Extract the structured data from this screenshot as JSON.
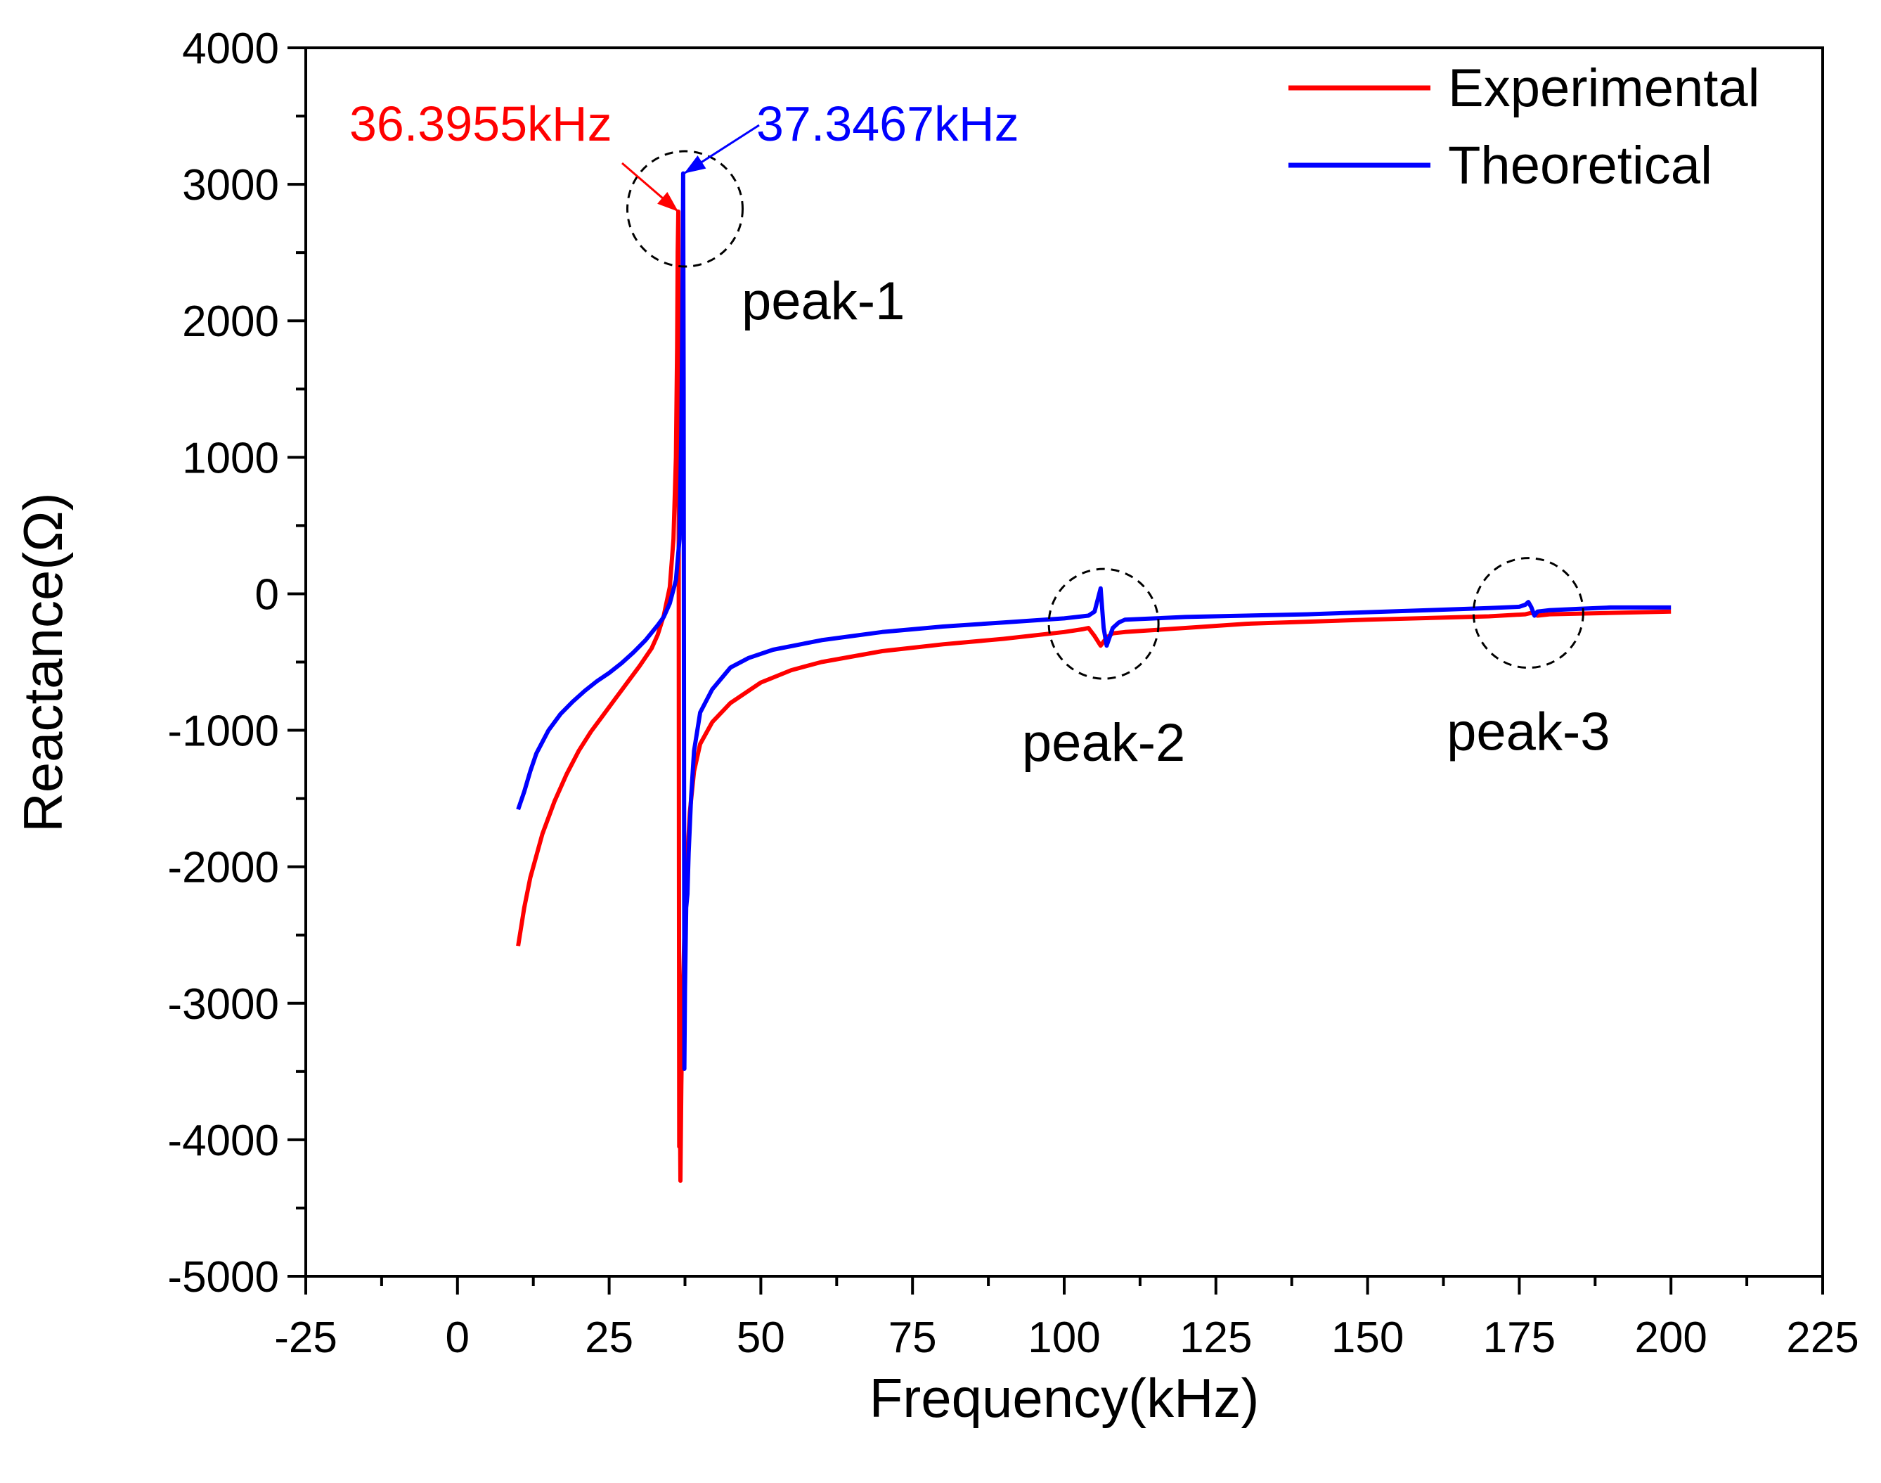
{
  "chart_data": {
    "type": "line",
    "xlabel": "Frequency(kHz)",
    "ylabel": "Reactance(Ω)",
    "xlim": [
      -25,
      225
    ],
    "ylim": [
      -5000,
      4000
    ],
    "xticks": [
      -25,
      0,
      25,
      50,
      75,
      100,
      125,
      150,
      175,
      200,
      225
    ],
    "yticks": [
      -5000,
      -4000,
      -3000,
      -2000,
      -1000,
      0,
      1000,
      2000,
      3000,
      4000
    ],
    "legend_position": "top-right",
    "series": [
      {
        "name": "Experimental",
        "color": "#ff0000",
        "points": [
          [
            10,
            -2580
          ],
          [
            11,
            -2300
          ],
          [
            12,
            -2080
          ],
          [
            14,
            -1760
          ],
          [
            16,
            -1520
          ],
          [
            18,
            -1320
          ],
          [
            20,
            -1150
          ],
          [
            22,
            -1010
          ],
          [
            24,
            -890
          ],
          [
            26,
            -770
          ],
          [
            28,
            -650
          ],
          [
            30,
            -530
          ],
          [
            32,
            -400
          ],
          [
            33,
            -300
          ],
          [
            34,
            -160
          ],
          [
            35,
            50
          ],
          [
            35.6,
            400
          ],
          [
            36,
            1000
          ],
          [
            36.2,
            1800
          ],
          [
            36.3,
            2500
          ],
          [
            36.4,
            2800
          ],
          [
            36.45,
            1500
          ],
          [
            36.5,
            -2000
          ],
          [
            36.55,
            -4050
          ],
          [
            36.65,
            -3700
          ],
          [
            36.75,
            -4300
          ],
          [
            36.9,
            -3600
          ],
          [
            37.1,
            -3000
          ],
          [
            37.4,
            -2500
          ],
          [
            37.8,
            -2000
          ],
          [
            38.3,
            -1600
          ],
          [
            39,
            -1300
          ],
          [
            40,
            -1100
          ],
          [
            42,
            -940
          ],
          [
            45,
            -800
          ],
          [
            50,
            -650
          ],
          [
            55,
            -560
          ],
          [
            60,
            -500
          ],
          [
            70,
            -420
          ],
          [
            80,
            -370
          ],
          [
            90,
            -330
          ],
          [
            100,
            -280
          ],
          [
            103,
            -260
          ],
          [
            104,
            -250
          ],
          [
            105,
            -310
          ],
          [
            106,
            -380
          ],
          [
            107,
            -320
          ],
          [
            108,
            -290
          ],
          [
            110,
            -280
          ],
          [
            120,
            -250
          ],
          [
            130,
            -220
          ],
          [
            150,
            -190
          ],
          [
            170,
            -165
          ],
          [
            176,
            -150
          ],
          [
            177,
            -140
          ],
          [
            178,
            -160
          ],
          [
            180,
            -150
          ],
          [
            190,
            -140
          ],
          [
            200,
            -130
          ]
        ]
      },
      {
        "name": "Theoretical",
        "color": "#0000ff",
        "points": [
          [
            10,
            -1580
          ],
          [
            11,
            -1450
          ],
          [
            12,
            -1300
          ],
          [
            13,
            -1170
          ],
          [
            15,
            -1000
          ],
          [
            17,
            -880
          ],
          [
            19,
            -790
          ],
          [
            21,
            -710
          ],
          [
            23,
            -640
          ],
          [
            25,
            -580
          ],
          [
            27,
            -510
          ],
          [
            29,
            -430
          ],
          [
            31,
            -340
          ],
          [
            33,
            -230
          ],
          [
            34,
            -170
          ],
          [
            35,
            -70
          ],
          [
            36,
            100
          ],
          [
            36.6,
            400
          ],
          [
            36.9,
            1200
          ],
          [
            37.1,
            2200
          ],
          [
            37.2,
            3080
          ],
          [
            37.28,
            1500
          ],
          [
            37.34,
            -1000
          ],
          [
            37.4,
            -3480
          ],
          [
            37.5,
            -2900
          ],
          [
            37.7,
            -2300
          ],
          [
            37.9,
            -2200
          ],
          [
            38.1,
            -1900
          ],
          [
            38.5,
            -1500
          ],
          [
            39,
            -1150
          ],
          [
            40,
            -870
          ],
          [
            42,
            -700
          ],
          [
            45,
            -540
          ],
          [
            48,
            -470
          ],
          [
            52,
            -410
          ],
          [
            60,
            -340
          ],
          [
            70,
            -280
          ],
          [
            80,
            -240
          ],
          [
            90,
            -210
          ],
          [
            100,
            -180
          ],
          [
            104,
            -160
          ],
          [
            105,
            -130
          ],
          [
            106,
            40
          ],
          [
            106.5,
            -250
          ],
          [
            107,
            -380
          ],
          [
            108,
            -250
          ],
          [
            109,
            -210
          ],
          [
            110,
            -190
          ],
          [
            120,
            -170
          ],
          [
            140,
            -150
          ],
          [
            160,
            -120
          ],
          [
            170,
            -105
          ],
          [
            175,
            -95
          ],
          [
            176,
            -80
          ],
          [
            176.5,
            -60
          ],
          [
            177,
            -100
          ],
          [
            177.5,
            -160
          ],
          [
            178,
            -130
          ],
          [
            180,
            -120
          ],
          [
            185,
            -110
          ],
          [
            190,
            -100
          ],
          [
            200,
            -100
          ]
        ]
      }
    ],
    "annotations": [
      {
        "text": "36.3955kHz",
        "color": "#ff0000",
        "points_to": [
          36.3955,
          2800
        ]
      },
      {
        "text": "37.3467kHz",
        "color": "#0000ff",
        "points_to": [
          37.3467,
          3080
        ]
      }
    ],
    "circles": [
      {
        "label": "peak-1",
        "center": [
          37.5,
          2820
        ]
      },
      {
        "label": "peak-2",
        "center": [
          106.5,
          -220
        ]
      },
      {
        "label": "peak-3",
        "center": [
          176.5,
          -140
        ]
      }
    ]
  }
}
